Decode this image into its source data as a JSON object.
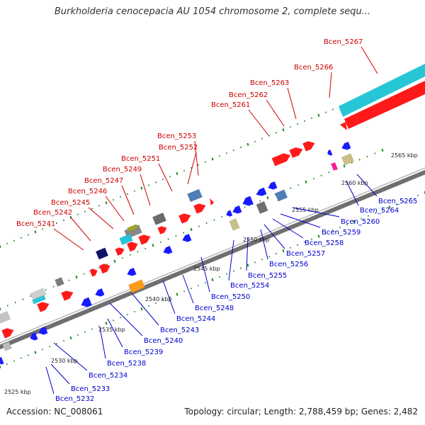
{
  "title": "Burkholderia cenocepacia AU 1054 chromosome 2, complete sequ...",
  "footer": {
    "accession": "Accession: NC_008061",
    "summary": "Topology: circular; Length: 2,788,459 bp; Genes: 2,482"
  },
  "colors": {
    "forward_gene": "#ff1a1a",
    "reverse_gene": "#1a1aff",
    "forward_label": "#cc0000",
    "reverse_label": "#0000cc",
    "backbone": "#6f6f6f",
    "tick": "#1f8a1f"
  },
  "scale_labels": [
    "2525 kbp",
    "2530 kbp",
    "2535 kbp",
    "2540 kbp",
    "2545 kbp",
    "2550 kbp",
    "2555 kbp",
    "2560 kbp",
    "2565 kbp"
  ],
  "forward_labels": [
    "Bcen_5267",
    "Bcen_5266",
    "Bcen_5263",
    "Bcen_5262",
    "Bcen_5261",
    "Bcen_5253",
    "Bcen_5252",
    "Bcen_5251",
    "Bcen_5249",
    "Bcen_5247",
    "Bcen_5246",
    "Bcen_5245",
    "Bcen_5242",
    "Bcen_5241"
  ],
  "reverse_labels": [
    "Bcen_5265",
    "Bcen_5264",
    "Bcen_5260",
    "Bcen_5259",
    "Bcen_5258",
    "Bcen_5257",
    "Bcen_5256",
    "Bcen_5255",
    "Bcen_5254",
    "Bcen_5250",
    "Bcen_5248",
    "Bcen_5244",
    "Bcen_5243",
    "Bcen_5240",
    "Bcen_5239",
    "Bcen_5238",
    "Bcen_5234",
    "Bcen_5233",
    "Bcen_5232"
  ]
}
